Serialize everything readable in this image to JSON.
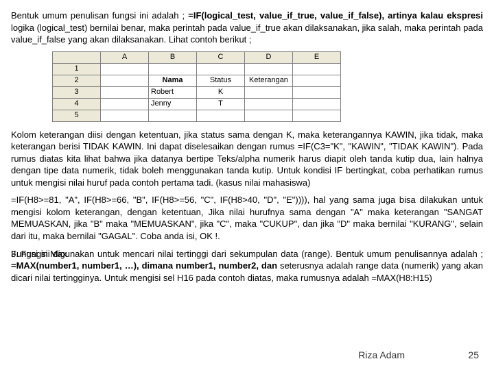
{
  "para1_a": "Bentuk umum penulisan fungsi ini adalah ; ",
  "para1_b": "=IF(logical_test, value_if_true, value_if_false), artinya kalau ekspresi ",
  "para1_c": "logika (logical_test) bernilai benar, maka perintah pada value_if_true akan dilaksanakan, jika salah, maka perintah pada value_if_false yang akan dilaksanakan. Lihat contoh berikut ;",
  "sheet": {
    "cols": [
      "",
      "A",
      "B",
      "C",
      "D",
      "E"
    ],
    "rows": [
      [
        "1",
        "",
        "",
        "",
        "",
        ""
      ],
      [
        "2",
        "",
        "Nama",
        "Status",
        "Keterangan",
        ""
      ],
      [
        "3",
        "",
        "Robert",
        "K",
        "",
        ""
      ],
      [
        "4",
        "",
        "Jenny",
        "T",
        "",
        ""
      ],
      [
        "5",
        "",
        "",
        "",
        "",
        ""
      ]
    ]
  },
  "para2": "Kolom keterangan diisi dengan ketentuan, jika status sama dengan K, maka keterangannya KAWIN, jika tidak, maka keterangan berisi TIDAK KAWIN. Ini dapat diselesaikan dengan rumus =IF(C3=\"K\", \"KAWIN\", \"TIDAK KAWIN\"). Pada rumus diatas kita lihat bahwa jika datanya bertipe Teks/alpha numerik harus diapit oleh tanda kutip dua, lain halnya dengan tipe data numerik, tidak boleh menggunakan tanda kutip. Untuk kondisi IF bertingkat, coba perhatikan rumus untuk mengisi nilai huruf pada contoh pertama tadi. (kasus nilai mahasiswa)",
  "para3": "=IF(H8>=81, \"A\", IF(H8>=66, \"B\", IF(H8>=56, \"C\", IF(H8>40, \"D\", \"E\")))), hal yang sama juga bisa dilakukan untuk mengisi kolom keterangan, dengan ketentuan, Jika nilai hurufnya sama dengan \"A\" maka keterangan \"SANGAT MEMUASKAN, jika \"B\" maka \"MEMUASKAN\", jika \"C\", maka \"CUKUP\", dan jika \"D\" maka bernilai \"KURANG\", selain dari itu, maka bernilai \"GAGAL\". Coba anda isi, OK !.",
  "para4_title": "3. Fungsi Max",
  "para4_body": "Fungsi ini digunakan untuk mencari nilai tertinggi dari sekumpulan data (range). Bentuk umum penulisannya adalah ; ",
  "para4_bold": "=MAX(number1, number1, …), dimana number1, number2, dan ",
  "para4_rest": "seterusnya adalah range data (numerik) yang akan dicari nilai tertingginya. Untuk mengisi sel H16 pada contoh diatas, maka rumusnya adalah =MAX(H8:H15)",
  "footer_name": "Riza Adam",
  "footer_page": "25"
}
